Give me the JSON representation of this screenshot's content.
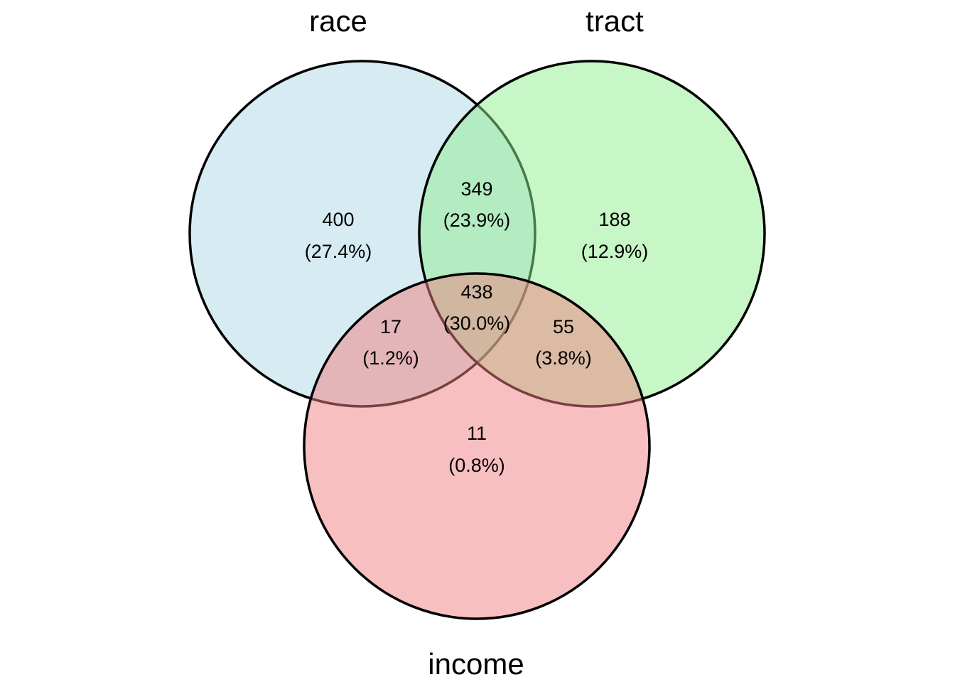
{
  "sets": [
    {
      "key": "race",
      "label": "race",
      "color": "#ADD8E6"
    },
    {
      "key": "tract",
      "label": "tract",
      "color": "#90EE90"
    },
    {
      "key": "income",
      "label": "income",
      "color": "#F08080"
    }
  ],
  "regions": {
    "race_only": {
      "count": "400",
      "percent": "(27.4%)"
    },
    "tract_only": {
      "count": "188",
      "percent": "(12.9%)"
    },
    "income_only": {
      "count": "11",
      "percent": "(0.8%)"
    },
    "race_tract": {
      "count": "349",
      "percent": "(23.9%)"
    },
    "race_income": {
      "count": "17",
      "percent": "(1.2%)"
    },
    "tract_income": {
      "count": "55",
      "percent": "(3.8%)"
    },
    "all_three": {
      "count": "438",
      "percent": "(30.0%)"
    }
  },
  "styles": {
    "fill_opacity": 0.5,
    "stroke_color": "#000000"
  }
}
